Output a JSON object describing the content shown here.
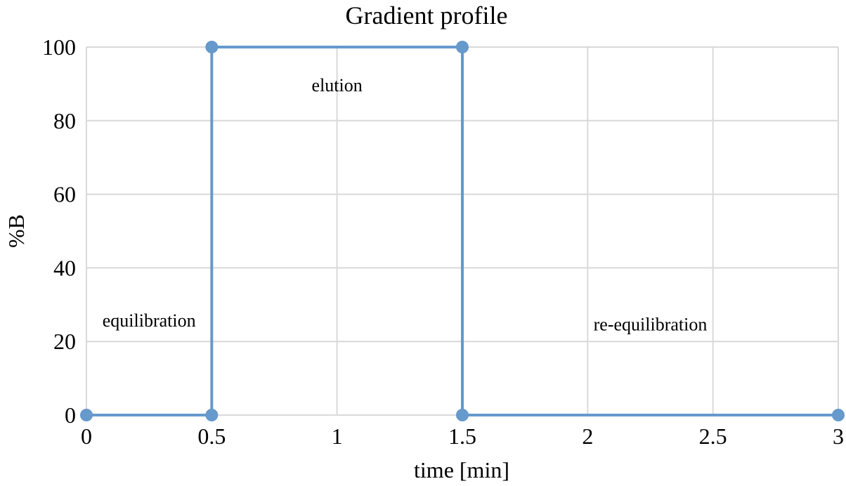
{
  "chart_data": {
    "type": "line",
    "title": "Gradient profile",
    "xlabel": "time [min]",
    "ylabel": "%B",
    "xlim": [
      0,
      3
    ],
    "ylim": [
      0,
      100
    ],
    "x_ticks": [
      0,
      0.5,
      1,
      1.5,
      2,
      2.5,
      3
    ],
    "x_tick_labels": [
      "0",
      "0.5",
      "1",
      "1.5",
      "2",
      "2.5",
      "3"
    ],
    "y_ticks": [
      0,
      20,
      40,
      60,
      80,
      100
    ],
    "y_tick_labels": [
      "0",
      "20",
      "40",
      "60",
      "80",
      "100"
    ],
    "grid": true,
    "legend": "none",
    "series": [
      {
        "color": "#6699cc",
        "points": [
          {
            "x": 0,
            "y": 0
          },
          {
            "x": 0.5,
            "y": 0
          },
          {
            "x": 0.5,
            "y": 100
          },
          {
            "x": 1.5,
            "y": 100
          },
          {
            "x": 1.5,
            "y": 0
          },
          {
            "x": 3,
            "y": 0
          }
        ]
      }
    ],
    "annotations": [
      {
        "text": "equilibration",
        "x": 0.25,
        "y": 24
      },
      {
        "text": "elution",
        "x": 1.0,
        "y": 88
      },
      {
        "text": "re-equilibration",
        "x": 2.25,
        "y": 23
      }
    ]
  }
}
